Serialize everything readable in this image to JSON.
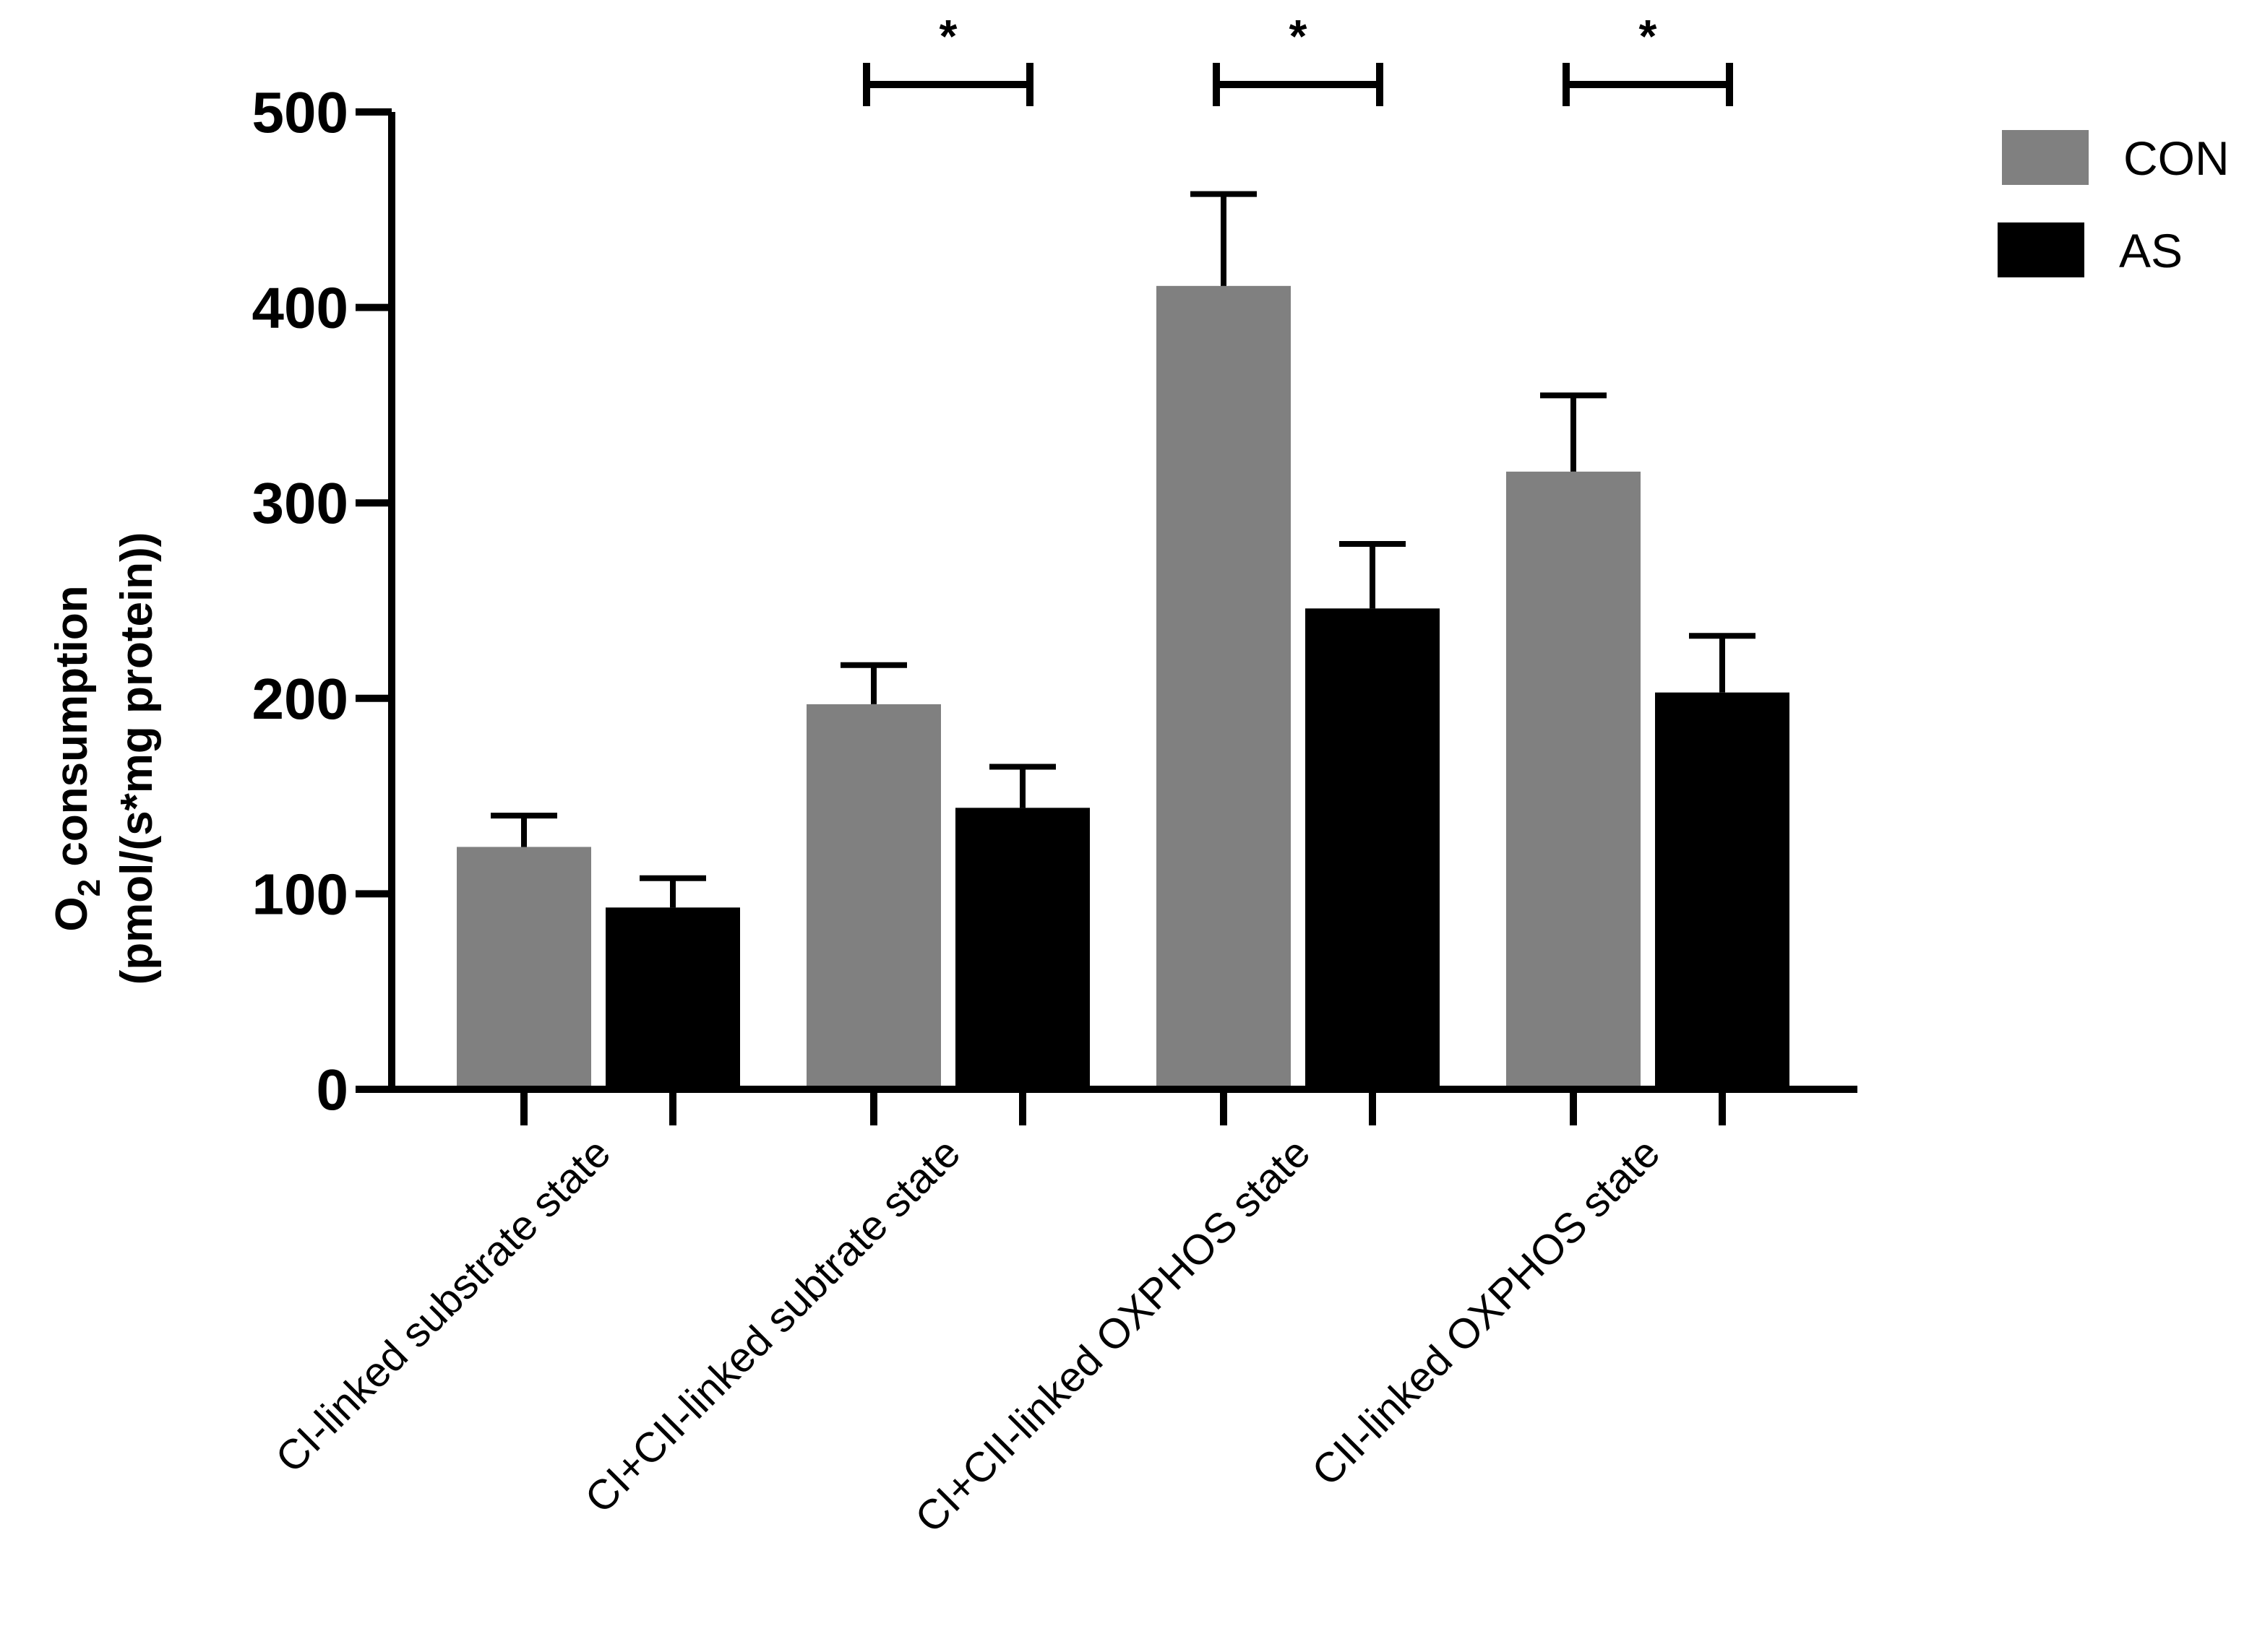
{
  "chart_data": {
    "type": "bar",
    "title": "",
    "xlabel": "",
    "ylabel": "O2 consumption (pmol/(s*mg protein))",
    "ylabel_lines": [
      "O",
      "2",
      " consumption",
      "(pmol/(s*mg protein))"
    ],
    "ylim": [
      0,
      500
    ],
    "yticks": [
      0,
      100,
      200,
      300,
      400,
      500
    ],
    "grid": false,
    "legend_position": "top-right",
    "categories": [
      "CI-linked substrate state",
      "CI+CII-linked subtrate state",
      "CI+CII-linked OXPHOS state",
      "CII-linked OXPHOS state"
    ],
    "series": [
      {
        "name": "CON",
        "color": "#808080",
        "values": [
          124,
          197,
          411,
          316
        ],
        "errors": [
          16,
          20,
          47,
          39
        ]
      },
      {
        "name": "AS",
        "color": "#000000",
        "values": [
          93,
          144,
          246,
          203
        ],
        "errors": [
          15,
          21,
          33,
          29
        ]
      }
    ],
    "significance": [
      {
        "category_index": 1,
        "label": "*"
      },
      {
        "category_index": 2,
        "label": "*"
      },
      {
        "category_index": 3,
        "label": "*"
      }
    ]
  }
}
